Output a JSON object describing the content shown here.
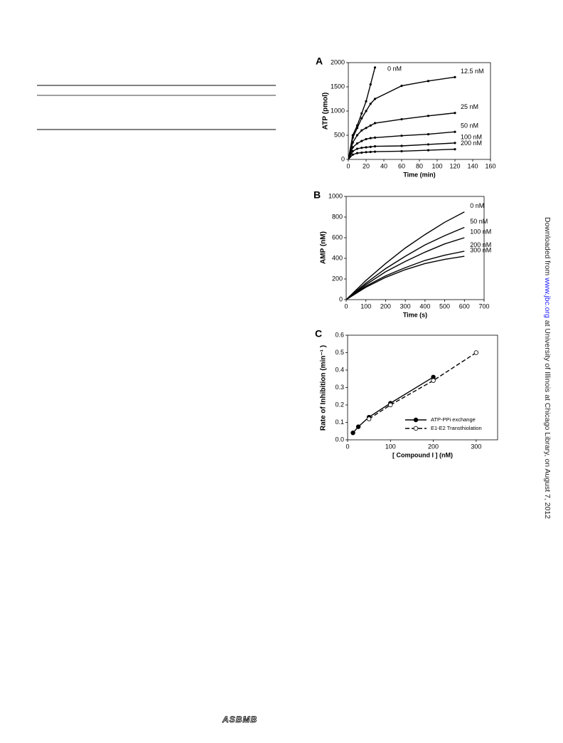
{
  "chart_data": [
    {
      "type": "line",
      "panel": "A",
      "x_label": "Time (min)",
      "y_label": "ATP (pmol)",
      "xlim": [
        0,
        160
      ],
      "xticks": [
        0,
        20,
        40,
        60,
        80,
        100,
        120,
        140,
        160
      ],
      "ylim": [
        0,
        2000
      ],
      "yticks": [
        0,
        500,
        1000,
        1500,
        2000
      ],
      "x": [
        0,
        5,
        10,
        15,
        20,
        25,
        30,
        60,
        90,
        120
      ],
      "series": [
        {
          "name": "0 nM",
          "color": "#000000",
          "values": [
            0,
            500,
            700,
            950,
            1200,
            1550,
            1900,
            null,
            null,
            null
          ]
        },
        {
          "name": "12.5 nM",
          "color": "#000000",
          "values": [
            0,
            450,
            650,
            850,
            1000,
            1150,
            1250,
            1520,
            1620,
            1700
          ]
        },
        {
          "name": "25 nM",
          "color": "#000000",
          "values": [
            0,
            350,
            500,
            600,
            650,
            700,
            750,
            830,
            900,
            960
          ]
        },
        {
          "name": "50 nM",
          "color": "#000000",
          "values": [
            0,
            250,
            330,
            380,
            420,
            440,
            450,
            490,
            520,
            570
          ]
        },
        {
          "name": "100 nM",
          "color": "#000000",
          "values": [
            0,
            170,
            220,
            240,
            250,
            260,
            270,
            280,
            310,
            340
          ]
        },
        {
          "name": "200 nM",
          "color": "#000000",
          "values": [
            0,
            100,
            130,
            140,
            150,
            155,
            160,
            170,
            190,
            210
          ]
        }
      ]
    },
    {
      "type": "line",
      "panel": "B",
      "x_label": "Time (s)",
      "y_label": "AMP (nM)",
      "xlim": [
        0,
        700
      ],
      "xticks": [
        0,
        100,
        200,
        300,
        400,
        500,
        600,
        700
      ],
      "ylim": [
        0,
        1000
      ],
      "yticks": [
        0,
        200,
        400,
        600,
        800,
        1000
      ],
      "x": [
        0,
        100,
        200,
        300,
        400,
        500,
        600
      ],
      "series": [
        {
          "name": "0 nM",
          "color": "#000000",
          "values": [
            0,
            185,
            350,
            500,
            630,
            750,
            850
          ]
        },
        {
          "name": "50 nM",
          "color": "#000000",
          "values": [
            0,
            160,
            300,
            420,
            530,
            620,
            700
          ]
        },
        {
          "name": "100 nM",
          "color": "#000000",
          "values": [
            0,
            145,
            270,
            370,
            460,
            540,
            600
          ]
        },
        {
          "name": "200 nM",
          "color": "#000000",
          "values": [
            0,
            130,
            230,
            310,
            380,
            430,
            470
          ]
        },
        {
          "name": "300 nM",
          "color": "#000000",
          "values": [
            0,
            120,
            215,
            290,
            350,
            390,
            420
          ]
        }
      ]
    },
    {
      "type": "scatter",
      "panel": "C",
      "x_label": "[ Compound I ] (nM)",
      "y_label": "Rate of Inhibition (min⁻¹ )",
      "xlim": [
        0,
        350
      ],
      "xticks": [
        0,
        100,
        200,
        300
      ],
      "ylim": [
        0,
        0.6
      ],
      "yticks": [
        {
          "value": 0,
          "label": "0.0"
        },
        0.1,
        0.2,
        0.3,
        0.4,
        0.5,
        0.6
      ],
      "legend": "lower right",
      "series": [
        {
          "name": "ATP-PPi exchange",
          "color": "#000000",
          "marker": "filled",
          "line": "solid",
          "x": [
            12.5,
            25,
            50,
            100,
            200
          ],
          "values": [
            0.04,
            0.075,
            0.13,
            0.21,
            0.36
          ]
        },
        {
          "name": "E1-E2 Transthiolation",
          "color": "#000000",
          "marker": "open",
          "line": "dashed",
          "x": [
            50,
            100,
            200,
            300
          ],
          "values": [
            0.12,
            0.2,
            0.34,
            0.5
          ]
        }
      ]
    }
  ],
  "side_text": {
    "before": "Downloaded from ",
    "link": "www.jbc.org",
    "after": " at University of Illinois at Chicago Library, on August 7, 2012"
  },
  "logo": "ASBMB"
}
